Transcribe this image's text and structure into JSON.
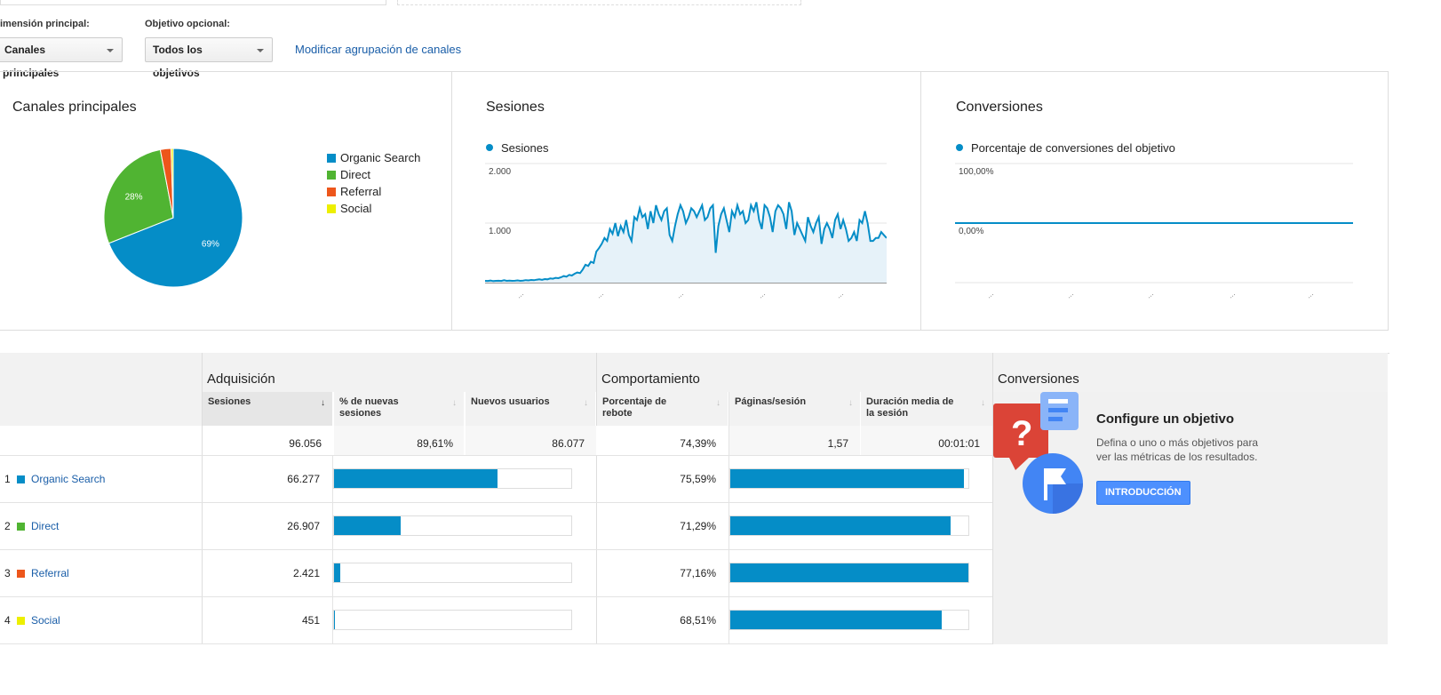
{
  "controls": {
    "primary_dimension_label": "imensión principal:",
    "primary_dimension_value": "Canales principales",
    "optional_goal_label": "Objetivo opcional:",
    "optional_goal_value": "Todos los objetivos",
    "modify_link": "Modificar agrupación de canales"
  },
  "colors": {
    "organic": "#058dc7",
    "direct": "#50b432",
    "referral": "#ed561b",
    "social": "#edef00",
    "link": "#1a5ea8",
    "button": "#4d90fe"
  },
  "panels": {
    "channels_title": "Canales principales",
    "sessions_title": "Sesiones",
    "conversions_title": "Conversiones",
    "sessions_series": "Sesiones",
    "conversions_series": "Porcentaje de conversiones del objetivo"
  },
  "chart_data": [
    {
      "type": "pie",
      "title": "Canales principales",
      "labels": [
        "Organic Search",
        "Direct",
        "Referral",
        "Social"
      ],
      "values": [
        69,
        28,
        2.5,
        0.5
      ],
      "value_labels": [
        "69%",
        "28%",
        "",
        ""
      ],
      "legend": "right"
    },
    {
      "type": "area",
      "title": "Sesiones",
      "series": [
        {
          "name": "Sesiones",
          "values": [
            30,
            28,
            35,
            25,
            30,
            32,
            28,
            40,
            30,
            35,
            30,
            32,
            38,
            30,
            35,
            42,
            38,
            45,
            40,
            50,
            55,
            48,
            60,
            55,
            70,
            65,
            80,
            75,
            90,
            110,
            100,
            130,
            120,
            150,
            170,
            160,
            220,
            300,
            280,
            350,
            330,
            520,
            580,
            650,
            750,
            700,
            900,
            820,
            1000,
            780,
            950,
            850,
            1050,
            800,
            700,
            1100,
            1050,
            1250,
            1100,
            1150,
            900,
            1200,
            1000,
            1300,
            1150,
            1050,
            1200,
            1250,
            800,
            700,
            950,
            1150,
            1300,
            1200,
            1000,
            1100,
            1250,
            1200,
            1100,
            1200,
            1300,
            1050,
            1100,
            1250,
            1300,
            500,
            950,
            1150,
            1250,
            1050,
            850,
            1200,
            1100,
            1300,
            1150,
            1200,
            1000,
            1050,
            1300,
            1200,
            1350,
            1050,
            900,
            1300,
            1250,
            1100,
            850,
            1200,
            1300,
            1250,
            1150,
            900,
            1350,
            1200,
            800,
            1000,
            900,
            800,
            700,
            1100,
            950,
            850,
            1000,
            1100,
            650,
            900,
            1000,
            900,
            750,
            1050,
            1150,
            900,
            1050,
            900,
            700,
            750,
            850,
            700,
            1050,
            1000,
            1200,
            1000,
            700,
            700,
            750,
            750,
            850,
            800,
            750
          ]
        }
      ],
      "y_ticks": [
        "2.000",
        "1.000"
      ],
      "ylim": [
        0,
        2000
      ],
      "grid": true
    },
    {
      "type": "line",
      "title": "Conversiones",
      "series": [
        {
          "name": "Porcentaje de conversiones del objetivo",
          "values": [
            0,
            0,
            0,
            0,
            0,
            0,
            0,
            0,
            0,
            0
          ]
        }
      ],
      "y_ticks": [
        "100,00%",
        "0,00%"
      ],
      "ylim": [
        -100,
        100
      ],
      "grid": true
    }
  ],
  "table": {
    "groups": {
      "acquisition": "Adquisición",
      "behavior": "Comportamiento",
      "conversions": "Conversiones"
    },
    "headers": {
      "sessions": "Sesiones",
      "new_sessions_pct": "% de nuevas sesiones",
      "new_users": "Nuevos usuarios",
      "bounce_rate": "Porcentaje de rebote",
      "pages_per_session": "Páginas/sesión",
      "avg_duration": "Duración media de la sesión"
    },
    "totals": {
      "sessions": "96.056",
      "new_sessions_pct": "89,61%",
      "new_users": "86.077",
      "bounce_rate": "74,39%",
      "pages_per_session": "1,57",
      "avg_duration": "00:01:01"
    },
    "rows": [
      {
        "num": "1",
        "channel": "Organic Search",
        "sessions": "66.277",
        "sessions_share": 0.69,
        "bounce": "75,59%",
        "bounce_share": 0.9797
      },
      {
        "num": "2",
        "channel": "Direct",
        "sessions": "26.907",
        "sessions_share": 0.28,
        "bounce": "71,29%",
        "bounce_share": 0.9239
      },
      {
        "num": "3",
        "channel": "Referral",
        "sessions": "2.421",
        "sessions_share": 0.0252,
        "bounce": "77,16%",
        "bounce_share": 1.0
      },
      {
        "num": "4",
        "channel": "Social",
        "sessions": "451",
        "sessions_share": 0.0047,
        "bounce": "68,51%",
        "bounce_share": 0.8879
      }
    ]
  },
  "goal_prompt": {
    "title": "Configure un objetivo",
    "description_line1": "Defina o uno o más objetivos para",
    "description_line2": "ver las métricas de los resultados.",
    "button": "INTRODUCCIÓN"
  }
}
